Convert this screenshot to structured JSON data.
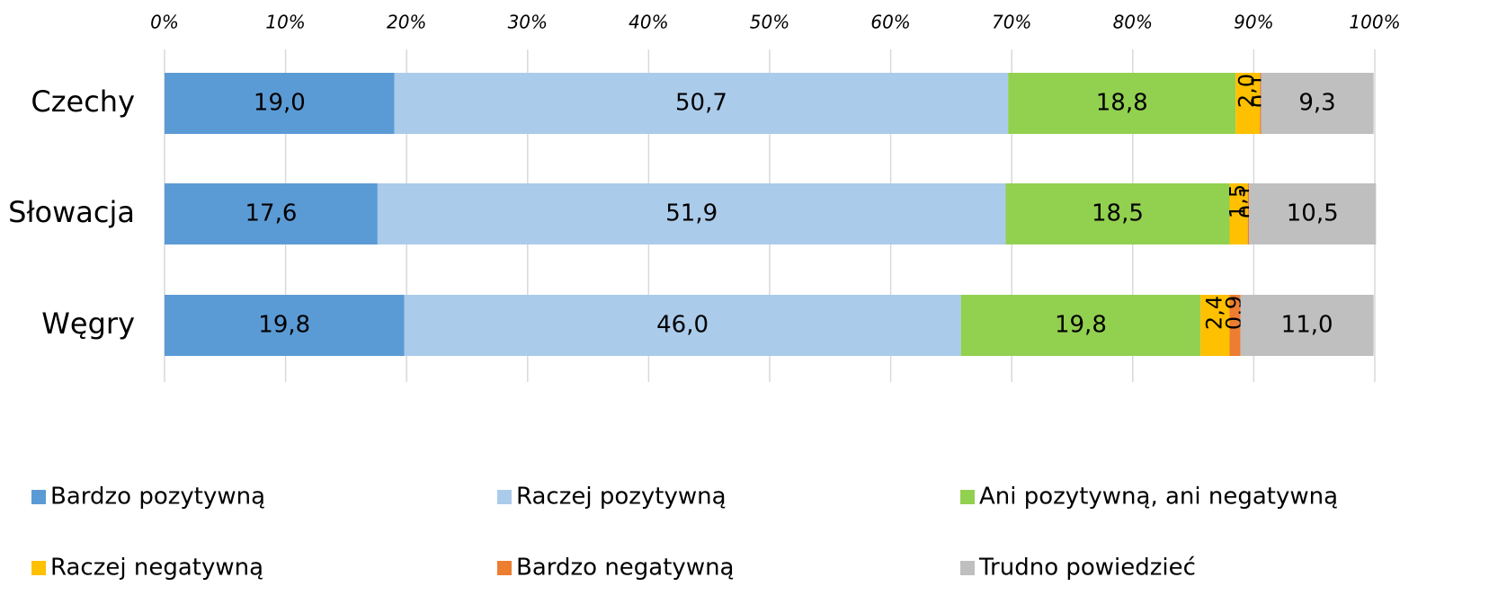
{
  "chart_data": {
    "type": "stacked_barh",
    "categories": [
      "Czechy",
      "Słowacja",
      "Węgry"
    ],
    "series": [
      {
        "name": "Bardzo pozytywną",
        "color": "#5b9bd5",
        "values": [
          19.0,
          17.6,
          19.8
        ],
        "value_labels": [
          "19,0",
          "17,6",
          "19,8"
        ]
      },
      {
        "name": "Raczej pozytywną",
        "color": "#abcbea",
        "values": [
          50.7,
          51.9,
          46.0
        ],
        "value_labels": [
          "50,7",
          "51,9",
          "46,0"
        ]
      },
      {
        "name": "Ani pozytywną, ani negatywną",
        "color": "#92d050",
        "values": [
          18.8,
          18.5,
          19.8
        ],
        "value_labels": [
          "18,8",
          "18,5",
          "19,8"
        ]
      },
      {
        "name": "Raczej negatywną",
        "color": "#ffc000",
        "values": [
          2.0,
          1.5,
          2.4
        ],
        "value_labels": [
          "2,0",
          "1,5",
          "2,4"
        ]
      },
      {
        "name": "Bardzo negatywną",
        "color": "#ed7d31",
        "values": [
          0.1,
          0.1,
          0.9
        ],
        "value_labels": [
          "0,1",
          "0,1",
          "0,9"
        ]
      },
      {
        "name": "Trudno powiedzieć",
        "color": "#bfbfbf",
        "values": [
          9.3,
          10.5,
          11.0
        ],
        "value_labels": [
          "9,3",
          "10,5",
          "11,0"
        ]
      }
    ],
    "xlim": [
      0,
      100
    ],
    "xticks": [
      {
        "value": 0,
        "label": "0%"
      },
      {
        "value": 10,
        "label": "10%"
      },
      {
        "value": 20,
        "label": "20%"
      },
      {
        "value": 30,
        "label": "30%"
      },
      {
        "value": 40,
        "label": "40%"
      },
      {
        "value": 50,
        "label": "50%"
      },
      {
        "value": 60,
        "label": "60%"
      },
      {
        "value": 70,
        "label": "70%"
      },
      {
        "value": 80,
        "label": "80%"
      },
      {
        "value": 90,
        "label": "90%"
      },
      {
        "value": 100,
        "label": "100%"
      }
    ],
    "grid": true,
    "legend": "bottom"
  }
}
